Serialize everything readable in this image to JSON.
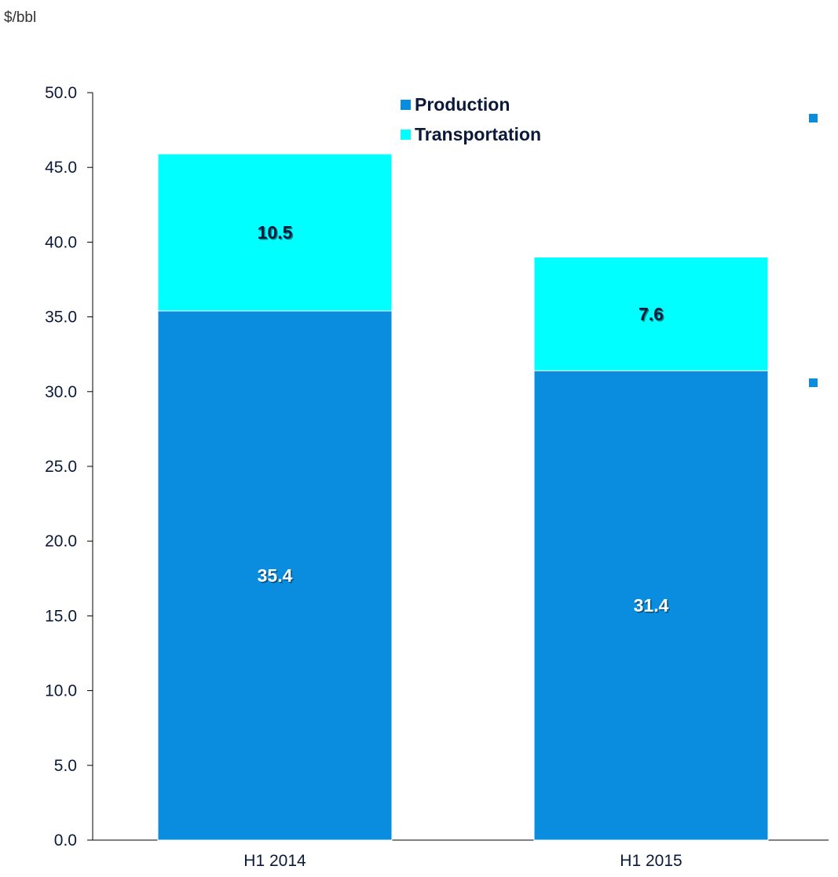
{
  "chart_data": {
    "type": "bar",
    "stacked": true,
    "unit_label": "$/bbl",
    "categories": [
      "H1 2014",
      "H1 2015"
    ],
    "series": [
      {
        "name": "Production",
        "values": [
          35.4,
          31.4
        ],
        "color": "#0A8DDE"
      },
      {
        "name": "Transportation",
        "values": [
          10.5,
          7.6
        ],
        "color": "#00FFFF"
      }
    ],
    "data_labels": [
      [
        "35.4",
        "31.4"
      ],
      [
        "10.5",
        "7.6"
      ]
    ],
    "ylim": [
      0,
      50
    ],
    "yticks": [
      "0.0",
      "5.0",
      "10.0",
      "15.0",
      "20.0",
      "25.0",
      "30.0",
      "35.0",
      "40.0",
      "45.0",
      "50.0"
    ],
    "grid": false,
    "legend_position": "top-center"
  },
  "colors": {
    "axis": "#000000",
    "tick_text": "#0b1a3a",
    "side_marker": "#0A8DDE"
  }
}
